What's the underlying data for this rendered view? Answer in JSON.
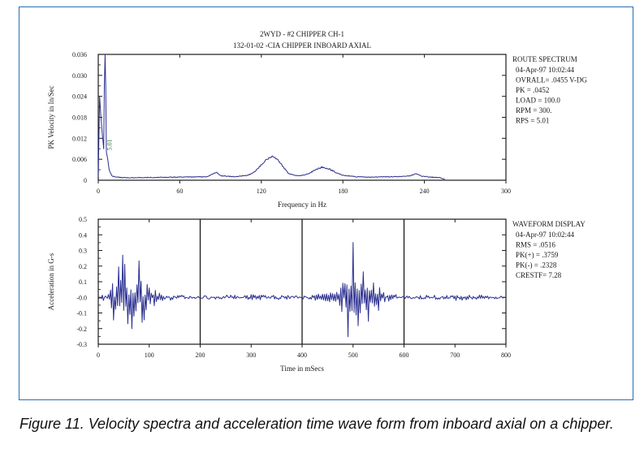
{
  "caption": "Figure 11. Velocity spectra and acceleration time wave form from inboard axial on a chipper.",
  "colors": {
    "trace": "#2b2f8f",
    "frame": "#2a6db3",
    "peak_label": "#2e7d32",
    "axis": "#1a1a1a"
  },
  "chart_data": [
    {
      "type": "line",
      "title": "2WYD - #2 CHIPPER CH-1",
      "subtitle": "132-01-02 -CIA  CHIPPER INBOARD AXIAL",
      "xlabel": "Frequency in Hz",
      "ylabel": "PK Velocity in In/Sec",
      "xlim": [
        0,
        300
      ],
      "ylim": [
        0,
        0.036
      ],
      "x_ticks": [
        "0",
        "60",
        "120",
        "180",
        "240",
        "300"
      ],
      "y_ticks": [
        "0",
        "0.006",
        "0.012",
        "0.018",
        "0.024",
        "0.030",
        "0.036"
      ],
      "peak_annotation": {
        "label": "5.01",
        "x": 5.01,
        "y": 0.0452
      },
      "series": [
        {
          "points": [
            [
              0,
              0.001
            ],
            [
              1,
              0.024
            ],
            [
              2,
              0.018
            ],
            [
              3,
              0.013
            ],
            [
              4,
              0.009
            ],
            [
              5,
              0.0452
            ],
            [
              6,
              0.008
            ],
            [
              7,
              0.006
            ],
            [
              8,
              0.003
            ],
            [
              9,
              0.002
            ],
            [
              10,
              0.0012
            ],
            [
              12,
              0.0009
            ],
            [
              20,
              0.0006
            ],
            [
              40,
              0.0007
            ],
            [
              60,
              0.0008
            ],
            [
              80,
              0.0009
            ],
            [
              84,
              0.0016
            ],
            [
              87,
              0.0022
            ],
            [
              90,
              0.0012
            ],
            [
              100,
              0.0009
            ],
            [
              110,
              0.0013
            ],
            [
              115,
              0.0022
            ],
            [
              120,
              0.0042
            ],
            [
              124,
              0.0058
            ],
            [
              128,
              0.0066
            ],
            [
              132,
              0.0058
            ],
            [
              136,
              0.0036
            ],
            [
              140,
              0.0018
            ],
            [
              146,
              0.0012
            ],
            [
              150,
              0.0013
            ],
            [
              155,
              0.0018
            ],
            [
              160,
              0.0028
            ],
            [
              165,
              0.0036
            ],
            [
              170,
              0.003
            ],
            [
              175,
              0.002
            ],
            [
              180,
              0.0013
            ],
            [
              190,
              0.0009
            ],
            [
              200,
              0.0008
            ],
            [
              210,
              0.0009
            ],
            [
              220,
              0.0009
            ],
            [
              230,
              0.0012
            ],
            [
              234,
              0.0018
            ],
            [
              238,
              0.001
            ],
            [
              245,
              0.0008
            ],
            [
              252,
              0.0006
            ],
            [
              255,
              0.0001
            ]
          ]
        }
      ],
      "info_panel": {
        "header": "ROUTE SPECTRUM",
        "lines": [
          "04-Apr-97  10:02:44",
          "OVRALL= .0455 V-DG",
          "PK  =  .0452",
          "LOAD = 100.0",
          "RPM =  300.",
          "RPS =  5.01"
        ]
      }
    },
    {
      "type": "line",
      "xlabel": "Time in mSecs",
      "ylabel": "Acceleration in G-s",
      "xlim": [
        0,
        800
      ],
      "ylim": [
        -0.3,
        0.5
      ],
      "x_ticks": [
        "0",
        "100",
        "200",
        "300",
        "400",
        "500",
        "600",
        "700",
        "800"
      ],
      "y_ticks": [
        "-0.3",
        "-0.2",
        "-0.1",
        "-0.0",
        "0.1",
        "0.2",
        "0.3",
        "0.4",
        "0.5"
      ],
      "markers_x": [
        200,
        400,
        600
      ],
      "series": [
        {
          "sample_ms": 2,
          "points": [
            [
              0,
              0
            ],
            [
              10,
              0.01
            ],
            [
              20,
              -0.02
            ],
            [
              30,
              0.15
            ],
            [
              35,
              -0.2
            ],
            [
              40,
              0.25
            ],
            [
              45,
              -0.24
            ],
            [
              48,
              0.375
            ],
            [
              52,
              -0.22
            ],
            [
              58,
              0.2
            ],
            [
              62,
              -0.15
            ],
            [
              66,
              0.25
            ],
            [
              70,
              -0.18
            ],
            [
              75,
              0.2
            ],
            [
              80,
              -0.24
            ],
            [
              85,
              0.22
            ],
            [
              90,
              -0.15
            ],
            [
              95,
              0.15
            ],
            [
              100,
              -0.08
            ],
            [
              110,
              0.06
            ],
            [
              120,
              -0.03
            ],
            [
              140,
              0.01
            ],
            [
              200,
              0
            ],
            [
              300,
              0.01
            ],
            [
              400,
              0
            ],
            [
              470,
              0.03
            ],
            [
              480,
              0.1
            ],
            [
              485,
              -0.15
            ],
            [
              490,
              0.3
            ],
            [
              495,
              -0.22
            ],
            [
              500,
              0.35
            ],
            [
              505,
              -0.2
            ],
            [
              510,
              0.25
            ],
            [
              515,
              -0.18
            ],
            [
              520,
              0.18
            ],
            [
              525,
              -0.15
            ],
            [
              530,
              0.2
            ],
            [
              535,
              -0.1
            ],
            [
              540,
              0.15
            ],
            [
              545,
              -0.08
            ],
            [
              550,
              0.1
            ],
            [
              560,
              -0.04
            ],
            [
              570,
              0.02
            ],
            [
              600,
              0
            ],
            [
              700,
              0.01
            ],
            [
              800,
              0
            ]
          ]
        }
      ],
      "info_panel": {
        "header": "WAVEFORM DISPLAY",
        "lines": [
          "04-Apr-97  10:02:44",
          "RMS =  .0516",
          "PK(+) = .3759",
          "PK(-) = .2328",
          "CRESTF= 7.28"
        ]
      }
    }
  ]
}
